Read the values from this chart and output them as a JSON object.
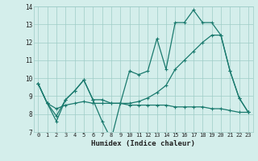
{
  "xlabel": "Humidex (Indice chaleur)",
  "x": [
    0,
    1,
    2,
    3,
    4,
    5,
    6,
    7,
    8,
    9,
    10,
    11,
    12,
    13,
    14,
    15,
    16,
    17,
    18,
    19,
    20,
    21,
    22,
    23
  ],
  "line1": [
    9.7,
    8.6,
    7.6,
    8.8,
    9.3,
    9.9,
    8.8,
    7.6,
    6.6,
    8.6,
    10.4,
    10.2,
    10.4,
    12.2,
    10.5,
    13.1,
    13.1,
    13.8,
    13.1,
    13.1,
    12.4,
    10.4,
    8.9,
    8.1
  ],
  "line2": [
    9.7,
    8.6,
    7.9,
    8.8,
    9.3,
    9.9,
    8.8,
    8.8,
    8.6,
    8.6,
    8.6,
    8.7,
    8.9,
    9.2,
    9.6,
    10.5,
    11.0,
    11.5,
    12.0,
    12.4,
    12.4,
    10.4,
    8.9,
    8.1
  ],
  "line3": [
    9.7,
    8.6,
    8.3,
    8.5,
    8.6,
    8.7,
    8.6,
    8.6,
    8.6,
    8.6,
    8.5,
    8.5,
    8.5,
    8.5,
    8.5,
    8.4,
    8.4,
    8.4,
    8.4,
    8.3,
    8.3,
    8.2,
    8.1,
    8.1
  ],
  "color": "#1a7a6e",
  "bg_color": "#d4eeeb",
  "ylim": [
    7,
    14
  ],
  "xlim": [
    -0.5,
    23.5
  ]
}
